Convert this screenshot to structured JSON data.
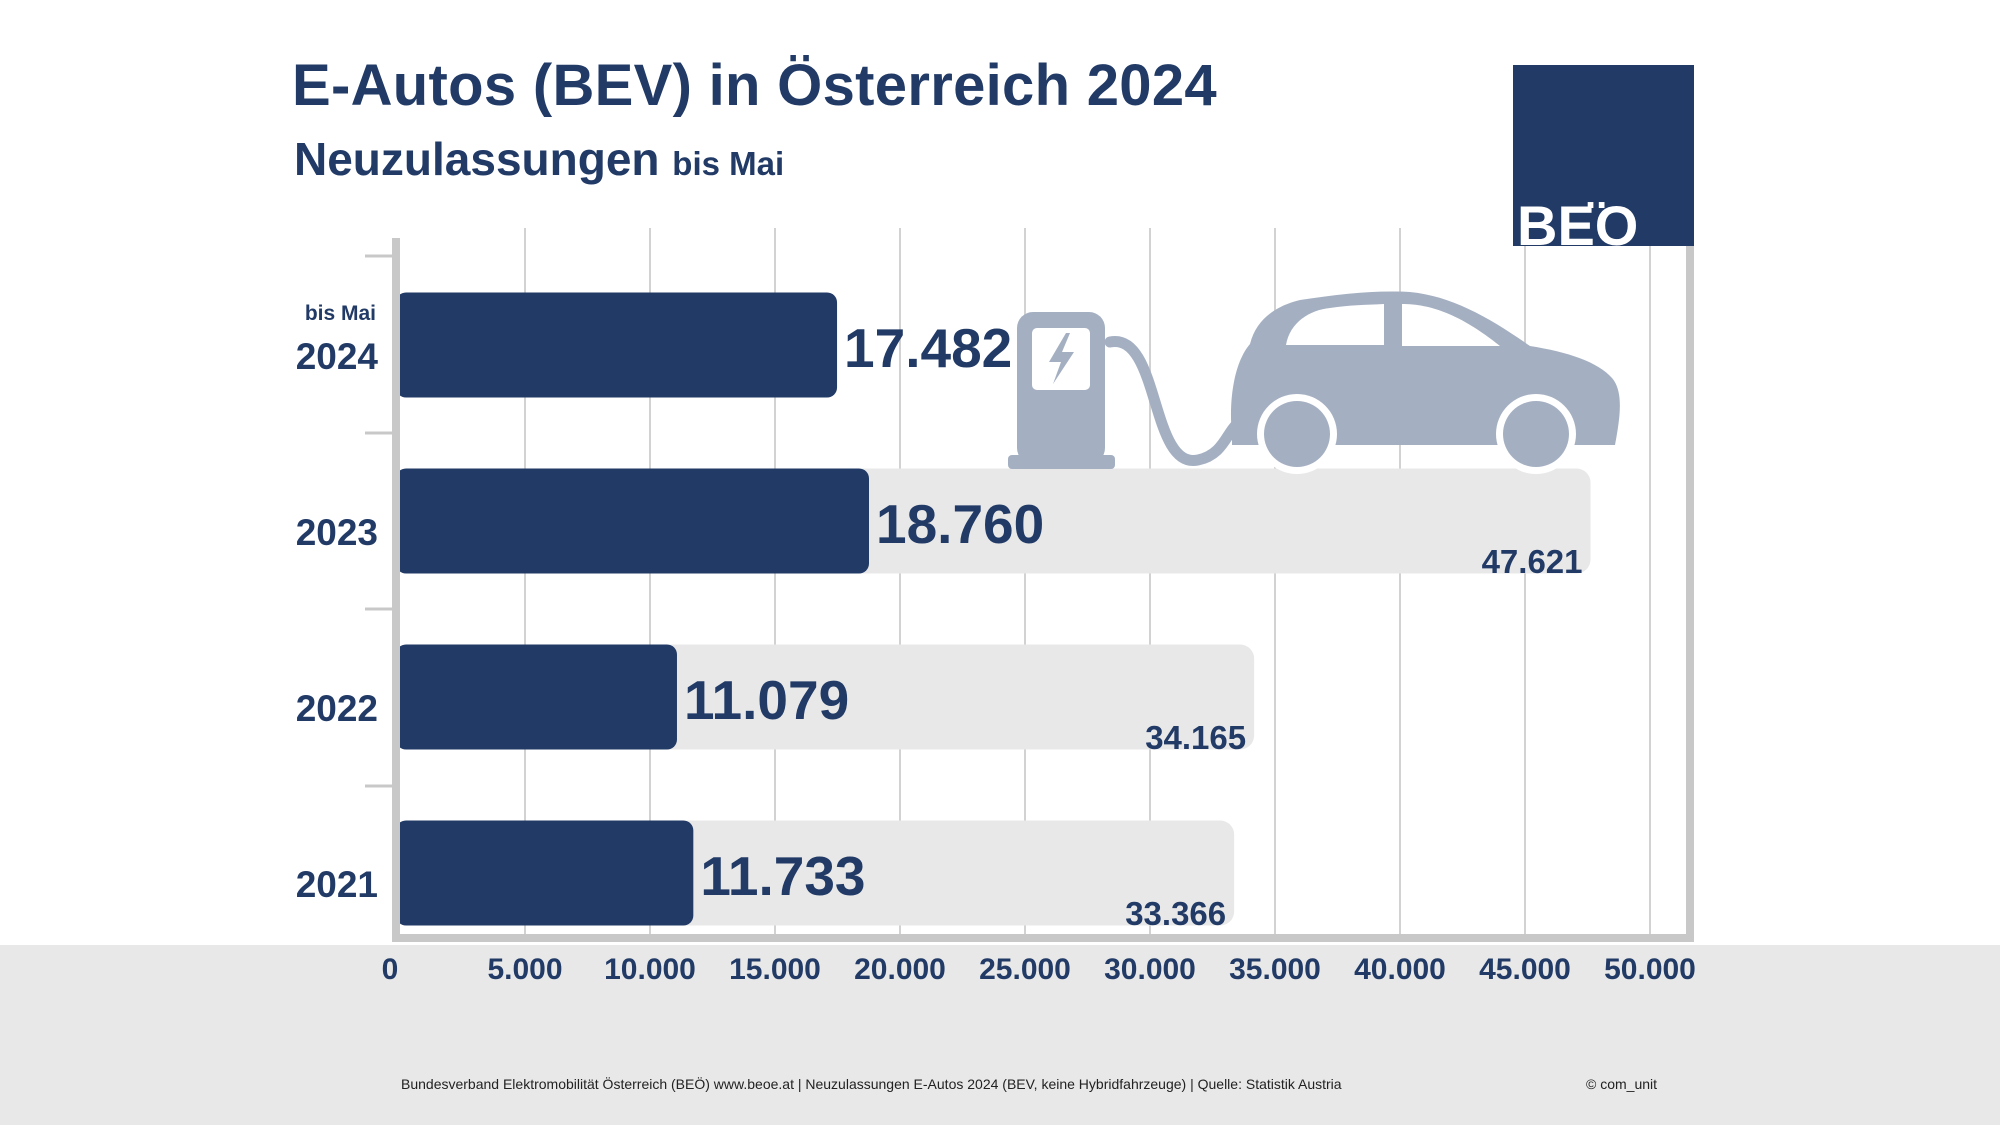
{
  "title": "E-Autos (BEV) in Österreich 2024",
  "subtitle": "Neuzulassungen",
  "subtitle_small": "bis Mai",
  "logo_text": "BEO",
  "logo_dots": "..",
  "footer": {
    "source": "Bundesverband Elektromobilität Österreich (BEÖ) www.beoe.at | Neuzulassungen E-Autos 2024 (BEV, keine Hybridfahrzeuge) | Quelle: Statistik Austria",
    "credit": "© com_unit"
  },
  "colors": {
    "primary": "#213a66",
    "total_bar": "#e8e8e8",
    "icon": "#a4b0c2",
    "axis": "#c8c8c8",
    "grid": "#d2d2d2"
  },
  "icons": [
    "charging-station-icon",
    "electric-car-icon"
  ],
  "chart_data": {
    "type": "bar",
    "orientation": "horizontal",
    "categories": [
      "2024",
      "2023",
      "2022",
      "2021"
    ],
    "category_prefix": {
      "2024": "bis Mai"
    },
    "series": [
      {
        "values": [
          17482,
          18760,
          11079,
          11733
        ],
        "labels": [
          "17.482",
          "18.760",
          "11.079",
          "11.733"
        ]
      },
      {
        "values": [
          null,
          47621,
          34165,
          33366
        ],
        "labels": [
          "",
          "47.621",
          "34.165",
          "33.366"
        ]
      }
    ],
    "xlim": [
      0,
      50000
    ],
    "xticks": [
      0,
      5000,
      10000,
      15000,
      20000,
      25000,
      30000,
      35000,
      40000,
      45000,
      50000
    ],
    "xtick_labels": [
      "0",
      "5.000",
      "10.000",
      "15.000",
      "20.000",
      "25.000",
      "30.000",
      "35.000",
      "40.000",
      "45.000",
      "50.000"
    ],
    "grid": true,
    "legend": "none"
  }
}
